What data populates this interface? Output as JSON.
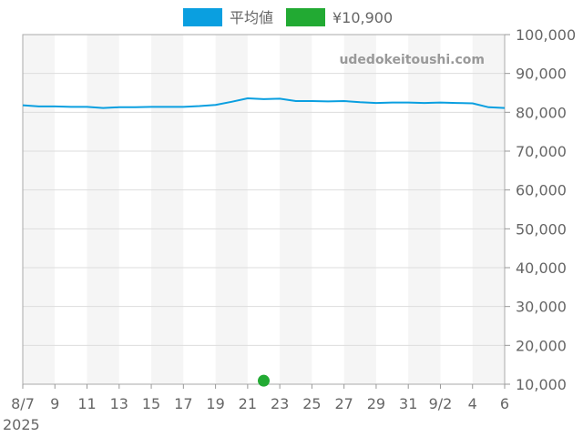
{
  "chart_data": {
    "type": "line",
    "title": "",
    "xlabel": "",
    "ylabel": "",
    "legend": {
      "placement": "top",
      "entries": [
        {
          "label": "平均値",
          "color": "#0a9fe0"
        },
        {
          "label": "¥10,900",
          "color": "#22aa33"
        }
      ]
    },
    "watermark": "udedokeitoushi.com",
    "year_label": "2025",
    "ylim": [
      10000,
      100000
    ],
    "y_ticks": [
      "10,000",
      "20,000",
      "30,000",
      "40,000",
      "50,000",
      "60,000",
      "70,000",
      "80,000",
      "90,000",
      "100,000"
    ],
    "y_tick_values": [
      10000,
      20000,
      30000,
      40000,
      50000,
      60000,
      70000,
      80000,
      90000,
      100000
    ],
    "x_ticks": [
      "8/7",
      "9",
      "11",
      "13",
      "15",
      "17",
      "19",
      "21",
      "23",
      "25",
      "27",
      "29",
      "31",
      "9/2",
      "4",
      "6"
    ],
    "grid": true,
    "series": [
      {
        "name": "平均値",
        "color": "#0a9fe0",
        "x": [
          "8/7",
          "8/8",
          "8/9",
          "8/10",
          "8/11",
          "8/12",
          "8/13",
          "8/14",
          "8/15",
          "8/16",
          "8/17",
          "8/18",
          "8/19",
          "8/20",
          "8/21",
          "8/22",
          "8/23",
          "8/24",
          "8/25",
          "8/26",
          "8/27",
          "8/28",
          "8/29",
          "8/30",
          "8/31",
          "9/1",
          "9/2",
          "9/3",
          "9/4",
          "9/5",
          "9/6"
        ],
        "values": [
          81800,
          81500,
          81500,
          81400,
          81400,
          81100,
          81300,
          81300,
          81400,
          81400,
          81400,
          81600,
          81900,
          82700,
          83600,
          83400,
          83500,
          82900,
          82900,
          82800,
          82900,
          82600,
          82400,
          82500,
          82500,
          82400,
          82500,
          82400,
          82300,
          81300,
          81100
        ]
      },
      {
        "name": "¥10,900",
        "color": "#22aa33",
        "type": "scatter",
        "x": [
          "8/22"
        ],
        "values": [
          10900
        ]
      }
    ]
  }
}
